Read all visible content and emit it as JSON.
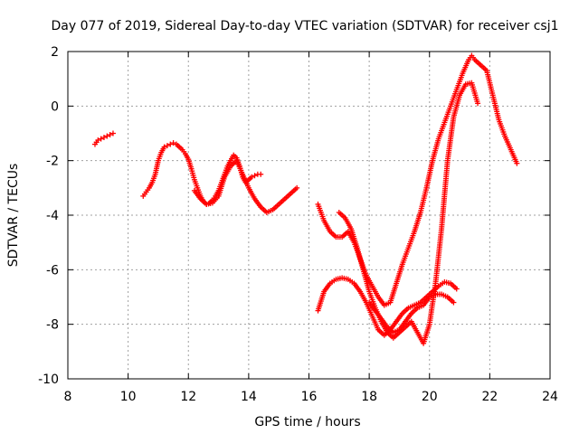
{
  "chart_data": {
    "type": "scatter",
    "title": "Day 077 of 2019, Sidereal Day-to-day VTEC variation (SDTVAR) for receiver csj1",
    "xlabel": "GPS time / hours",
    "ylabel": "SDTVAR / TECUs",
    "xlim": [
      8,
      24
    ],
    "ylim": [
      -10,
      2
    ],
    "xticks": [
      "8",
      "10",
      "12",
      "14",
      "16",
      "18",
      "20",
      "22",
      "24"
    ],
    "yticks": [
      "2",
      "0",
      "-2",
      "-4",
      "-6",
      "-8",
      "-10"
    ],
    "grid": true,
    "marker": "+",
    "color": "#ff0000",
    "series": [
      {
        "x": [
          8.9,
          9.0,
          9.1,
          9.2,
          9.3,
          9.4,
          9.5
        ],
        "y": [
          -1.4,
          -1.25,
          -1.2,
          -1.15,
          -1.1,
          -1.05,
          -1.0
        ]
      },
      {
        "x": [
          10.5,
          10.6,
          10.7,
          10.8,
          10.9,
          11.0,
          11.1,
          11.2,
          11.3,
          11.4,
          11.5,
          11.6,
          11.7,
          11.8,
          11.9,
          12.0,
          12.1,
          12.2,
          12.3,
          12.4,
          12.5,
          12.6,
          12.7,
          12.8,
          12.9,
          13.0,
          13.1,
          13.2,
          13.3,
          13.4,
          13.5,
          13.6,
          13.7,
          13.8,
          13.9,
          14.0,
          14.1,
          14.2,
          14.3,
          14.4
        ],
        "y": [
          -3.3,
          -3.15,
          -3.0,
          -2.8,
          -2.5,
          -2.0,
          -1.7,
          -1.5,
          -1.45,
          -1.4,
          -1.35,
          -1.4,
          -1.5,
          -1.6,
          -1.75,
          -1.95,
          -2.3,
          -2.7,
          -3.0,
          -3.3,
          -3.5,
          -3.6,
          -3.55,
          -3.45,
          -3.3,
          -3.1,
          -2.8,
          -2.5,
          -2.2,
          -2.0,
          -1.8,
          -1.9,
          -2.2,
          -2.6,
          -2.8,
          -2.7,
          -2.6,
          -2.55,
          -2.5,
          -2.5
        ]
      },
      {
        "x": [
          12.2,
          12.4,
          12.6,
          12.8,
          13.0,
          13.2,
          13.4,
          13.6,
          13.8,
          14.0,
          14.2,
          14.4,
          14.6,
          14.8,
          15.0,
          15.2,
          15.4,
          15.6
        ],
        "y": [
          -3.1,
          -3.4,
          -3.6,
          -3.55,
          -3.3,
          -2.6,
          -2.2,
          -2.0,
          -2.5,
          -3.0,
          -3.4,
          -3.7,
          -3.9,
          -3.8,
          -3.6,
          -3.4,
          -3.2,
          -3.0
        ]
      },
      {
        "x": [
          16.3,
          16.5,
          16.7,
          16.9,
          17.1,
          17.3,
          17.5,
          17.7,
          17.9,
          18.1,
          18.3,
          18.5,
          18.7,
          18.9,
          19.1,
          19.3,
          19.5,
          19.7,
          19.9,
          20.1,
          20.3,
          20.5,
          20.7,
          20.9,
          21.1,
          21.3,
          21.4,
          21.5,
          21.7,
          21.9,
          22.1,
          22.3,
          22.5,
          22.7,
          22.9
        ],
        "y": [
          -3.6,
          -4.2,
          -4.6,
          -4.8,
          -4.8,
          -4.6,
          -5.0,
          -5.6,
          -6.2,
          -6.6,
          -7.0,
          -7.3,
          -7.2,
          -6.5,
          -5.8,
          -5.2,
          -4.6,
          -3.9,
          -3.0,
          -2.0,
          -1.2,
          -0.6,
          0.0,
          0.6,
          1.2,
          1.7,
          1.85,
          1.7,
          1.5,
          1.3,
          0.4,
          -0.5,
          -1.1,
          -1.6,
          -2.1
        ]
      },
      {
        "x": [
          16.3,
          16.5,
          16.7,
          16.9,
          17.1,
          17.3,
          17.5,
          17.7,
          17.9,
          18.1,
          18.3,
          18.5,
          18.7,
          18.9,
          19.1,
          19.3,
          19.5,
          19.7,
          19.9,
          20.1,
          20.3,
          20.5,
          20.7,
          20.9
        ],
        "y": [
          -7.5,
          -6.8,
          -6.5,
          -6.35,
          -6.3,
          -6.35,
          -6.5,
          -6.8,
          -7.2,
          -7.7,
          -8.2,
          -8.4,
          -8.2,
          -7.9,
          -7.6,
          -7.4,
          -7.3,
          -7.2,
          -7.0,
          -6.8,
          -6.6,
          -6.45,
          -6.5,
          -6.7
        ]
      },
      {
        "x": [
          17.0,
          17.2,
          17.4,
          17.6,
          17.8,
          18.0,
          18.2,
          18.4,
          18.6,
          18.8,
          19.0,
          19.2,
          19.4,
          19.6,
          19.8,
          20.0,
          20.2,
          20.4,
          20.6,
          20.8,
          21.0,
          21.2,
          21.4,
          21.6
        ],
        "y": [
          -3.9,
          -4.1,
          -4.5,
          -5.2,
          -6.0,
          -6.8,
          -7.4,
          -7.9,
          -8.3,
          -8.5,
          -8.3,
          -8.1,
          -7.9,
          -8.3,
          -8.7,
          -8.0,
          -6.5,
          -4.5,
          -2.0,
          -0.4,
          0.4,
          0.8,
          0.85,
          0.1
        ]
      },
      {
        "x": [
          18.0,
          18.2,
          18.4,
          18.6,
          18.8,
          19.0,
          19.2,
          19.4,
          19.6,
          19.8,
          20.0,
          20.2,
          20.4,
          20.6,
          20.8
        ],
        "y": [
          -7.2,
          -7.5,
          -7.8,
          -8.1,
          -8.3,
          -8.2,
          -7.9,
          -7.6,
          -7.4,
          -7.3,
          -7.0,
          -6.9,
          -6.9,
          -7.0,
          -7.2
        ]
      }
    ]
  }
}
